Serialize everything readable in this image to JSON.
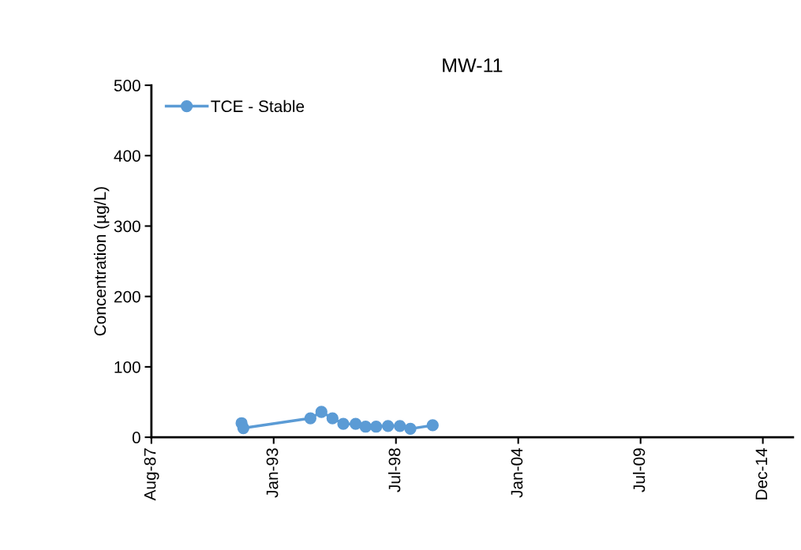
{
  "chart_data": {
    "type": "line",
    "title": "MW-11",
    "ylabel": "Concentration (µg/L)",
    "x": [
      "1991-08-25",
      "1991-09-23",
      "1994-09-24",
      "1995-03-23",
      "1995-09-20",
      "1996-03-15",
      "1996-10-03",
      "1997-03-15",
      "1997-09-03",
      "1998-03-16",
      "1998-09-26",
      "1999-03-17",
      "2000-03-16"
    ],
    "series": [
      {
        "name": "TCE - Stable",
        "color": "#5b9bd5",
        "values": [
          20,
          13,
          27,
          36,
          27,
          19,
          19,
          15,
          15,
          16,
          16,
          12,
          17
        ]
      }
    ],
    "xlim": [
      "1987-08-11",
      "2016-05-04"
    ],
    "xticks": [
      {
        "value": "1987-08-11",
        "label": "Aug-87"
      },
      {
        "value": "1993-01-31",
        "label": "Jan-93"
      },
      {
        "value": "1998-07-24",
        "label": "Jul-98"
      },
      {
        "value": "2004-01-14",
        "label": "Jan-04"
      },
      {
        "value": "2009-07-07",
        "label": "Jul-09"
      },
      {
        "value": "2014-12-28",
        "label": "Dec-14"
      }
    ],
    "ylim": [
      0,
      500
    ],
    "yticks": [
      0,
      100,
      200,
      300,
      400,
      500
    ],
    "grid": false,
    "legend": "top left",
    "marker": "circle",
    "line_style": "solid"
  }
}
